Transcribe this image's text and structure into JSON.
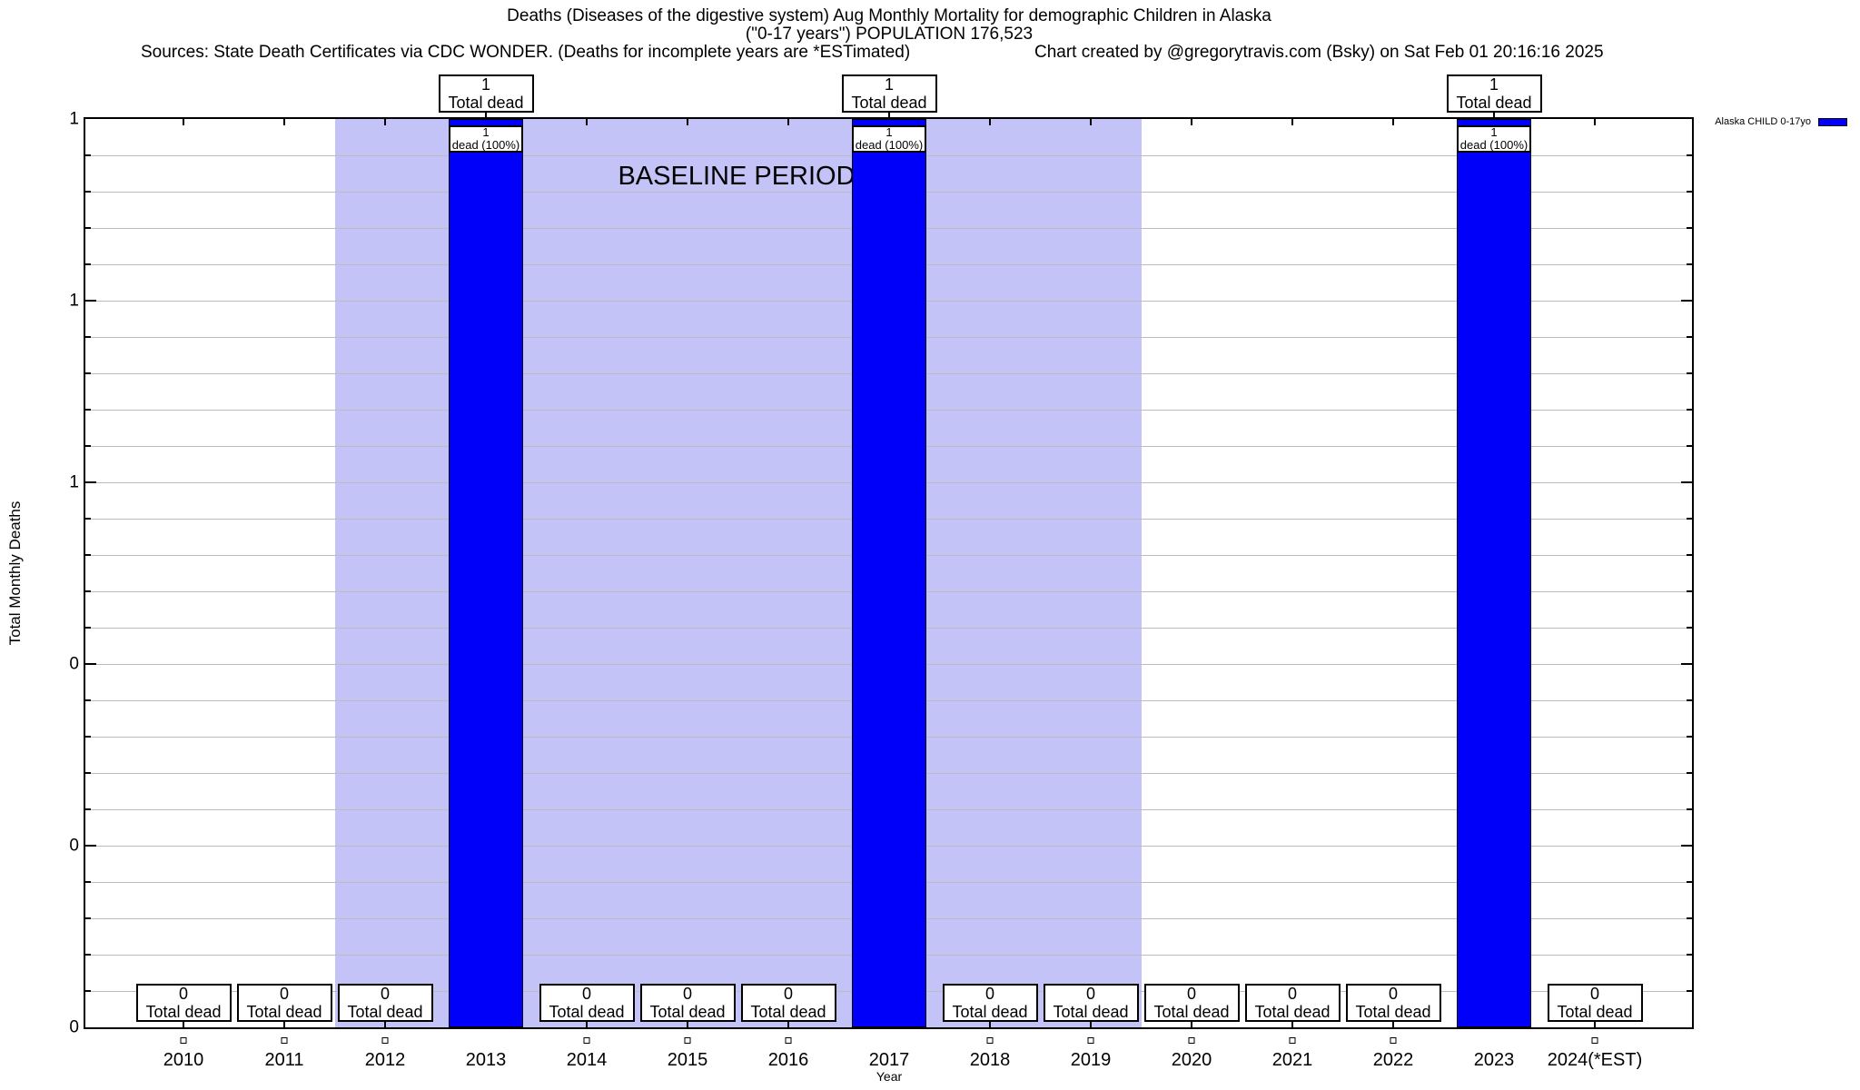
{
  "header": {
    "title_line1": "Deaths (Diseases of the digestive system) Aug Monthly Mortality for demographic Children in Alaska",
    "title_line2": "(\"0-17 years\") POPULATION 176,523",
    "source_left": "Sources: State Death Certificates via CDC WONDER. (Deaths for incomplete years are *ESTimated)",
    "source_right": "Chart created by @gregorytravis.com (Bsky) on Sat Feb 01 20:16:16 2025"
  },
  "legend": {
    "label": "Alaska CHILD 0-17yo",
    "color": "#0000FA"
  },
  "chart_data": {
    "type": "bar",
    "title": "Deaths (Diseases of the digestive system) Aug Monthly Mortality for demographic Children in Alaska (\"0-17 years\") POPULATION 176,523",
    "xlabel": "Year",
    "ylabel": "Total Monthly Deaths",
    "x": [
      "2010",
      "2011",
      "2012",
      "2013",
      "2014",
      "2015",
      "2016",
      "2017",
      "2018",
      "2019",
      "2020",
      "2021",
      "2022",
      "2023",
      "2024(*EST)"
    ],
    "series": [
      {
        "name": "Alaska CHILD 0-17yo",
        "values": [
          0,
          0,
          0,
          1,
          0,
          0,
          0,
          1,
          0,
          0,
          0,
          0,
          0,
          1,
          0
        ]
      }
    ],
    "ylim": [
      0,
      1
    ],
    "ytick_labels_top_to_bottom": [
      "1",
      "1",
      "1",
      "0",
      "0",
      "0"
    ],
    "grid": true,
    "legend_position": "top-right-outside",
    "bar_color": "#0000FA",
    "band_color": "#C3C3F7",
    "baseline_band": {
      "label": "BASELINE PERIOD",
      "from": "2012",
      "to": "2019"
    },
    "annotations": {
      "total_label": "Total dead",
      "bar_inner_count": "1",
      "bar_inner_label": "dead (100%)"
    }
  }
}
